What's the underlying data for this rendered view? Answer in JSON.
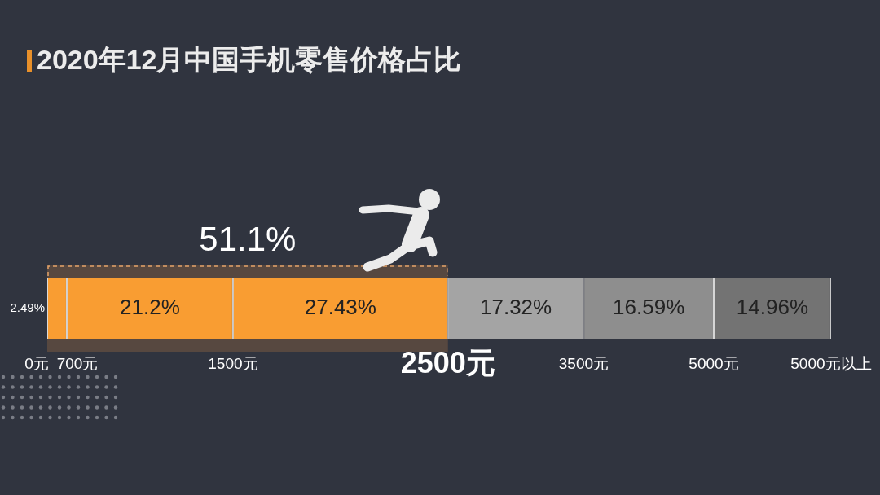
{
  "chart_data": {
    "type": "bar",
    "title": "2020年12月中国手机零售价格占比",
    "orientation": "horizontal",
    "stacked": true,
    "categories": [
      null
    ],
    "series": [
      {
        "color": "#f99d32",
        "values": [
          2.49
        ],
        "value_labels": [
          "2.49%"
        ]
      },
      {
        "color": "#f99d32",
        "values": [
          21.2
        ],
        "value_labels": [
          "21.2%"
        ]
      },
      {
        "color": "#f99d32",
        "values": [
          27.43
        ],
        "value_labels": [
          "27.43%"
        ]
      },
      {
        "color": "#a4a4a4",
        "values": [
          17.32
        ],
        "value_labels": [
          "17.32%"
        ]
      },
      {
        "color": "#8e8e8e",
        "values": [
          16.59
        ],
        "value_labels": [
          "16.59%"
        ]
      },
      {
        "color": "#737373",
        "values": [
          14.96
        ],
        "value_labels": [
          "14.96%"
        ]
      }
    ],
    "tick_labels": false,
    "bands": [
      {
        "axis": "x",
        "from": 0,
        "to": 51.12,
        "label": "51.1%",
        "color": "#574840"
      }
    ],
    "annotations": [
      "0元",
      "700元",
      "1500元",
      "2500元",
      "3500元",
      "5000元",
      "5000元以上"
    ]
  }
}
